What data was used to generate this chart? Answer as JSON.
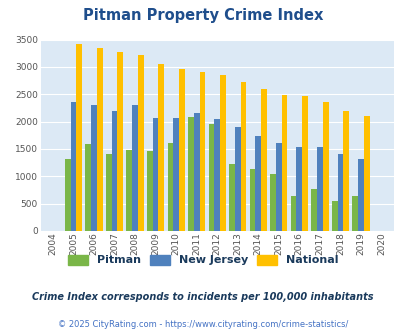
{
  "title": "Pitman Property Crime Index",
  "years": [
    2004,
    2005,
    2006,
    2007,
    2008,
    2009,
    2010,
    2011,
    2012,
    2013,
    2014,
    2015,
    2016,
    2017,
    2018,
    2019,
    2020
  ],
  "pitman": [
    0,
    1320,
    1600,
    1400,
    1490,
    1470,
    1610,
    2080,
    1960,
    1220,
    1140,
    1040,
    635,
    760,
    555,
    640,
    0
  ],
  "new_jersey": [
    0,
    2360,
    2300,
    2200,
    2300,
    2070,
    2070,
    2150,
    2050,
    1910,
    1730,
    1610,
    1540,
    1545,
    1400,
    1310,
    0
  ],
  "national": [
    0,
    3415,
    3340,
    3265,
    3210,
    3050,
    2960,
    2900,
    2860,
    2720,
    2590,
    2490,
    2460,
    2360,
    2200,
    2110,
    0
  ],
  "pitman_color": "#7ab648",
  "nj_color": "#4f81bd",
  "national_color": "#ffc000",
  "bg_color": "#dce9f5",
  "ylim": [
    0,
    3500
  ],
  "yticks": [
    0,
    500,
    1000,
    1500,
    2000,
    2500,
    3000,
    3500
  ],
  "legend_labels": [
    "Pitman",
    "New Jersey",
    "National"
  ],
  "subtitle": "Crime Index corresponds to incidents per 100,000 inhabitants",
  "footer": "© 2025 CityRating.com - https://www.cityrating.com/crime-statistics/",
  "title_color": "#1f4e8c",
  "subtitle_color": "#1a3a5c",
  "footer_color": "#4472c4",
  "text_color": "#1a3a5c"
}
